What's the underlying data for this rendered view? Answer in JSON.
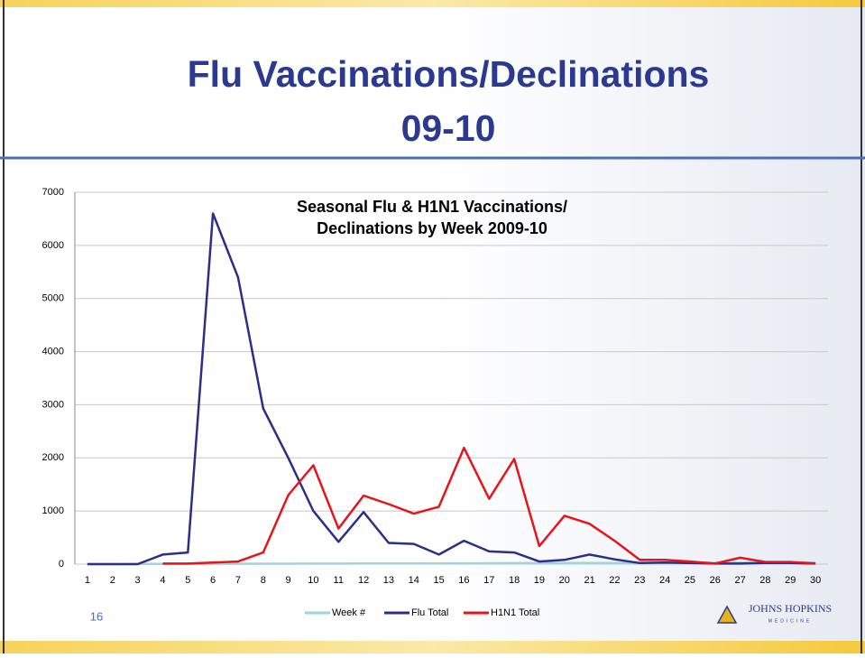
{
  "slide": {
    "title_lines": [
      "Flu Vaccinations/Declinations",
      "09-10"
    ],
    "page_number": "16",
    "logo": "JOHNS HOPKINS",
    "logo_sub": "MEDICINE"
  },
  "chart_data": {
    "type": "line",
    "title": [
      "Seasonal Flu & H1N1 Vaccinations/",
      "Declinations by Week  2009-10"
    ],
    "categories": [
      "1",
      "2",
      "3",
      "4",
      "5",
      "6",
      "7",
      "8",
      "9",
      "10",
      "11",
      "12",
      "13",
      "14",
      "15",
      "16",
      "17",
      "18",
      "19",
      "20",
      "21",
      "22",
      "23",
      "24",
      "25",
      "26",
      "27",
      "28",
      "29",
      "30"
    ],
    "series": [
      {
        "name": "Week #",
        "color": "#9fd4dc",
        "values": [
          1,
          2,
          3,
          4,
          5,
          6,
          7,
          8,
          9,
          10,
          11,
          12,
          13,
          14,
          15,
          16,
          17,
          18,
          19,
          20,
          21,
          22,
          23,
          24,
          25,
          26,
          27,
          28,
          29,
          30
        ]
      },
      {
        "name": "Flu Total",
        "color": "#2b2f86",
        "values": [
          0,
          0,
          0,
          180,
          220,
          6600,
          5400,
          2930,
          2000,
          1000,
          420,
          980,
          400,
          380,
          180,
          440,
          240,
          220,
          50,
          80,
          180,
          90,
          20,
          30,
          20,
          10,
          10,
          20,
          20,
          10
        ]
      },
      {
        "name": "H1N1 Total",
        "color": "#e8141b",
        "values": [
          null,
          null,
          null,
          10,
          10,
          30,
          50,
          220,
          1300,
          1860,
          670,
          1290,
          1130,
          950,
          1080,
          2190,
          1230,
          1980,
          340,
          910,
          760,
          440,
          80,
          80,
          50,
          10,
          120,
          40,
          40,
          10
        ]
      }
    ],
    "ylim": [
      0,
      7000
    ],
    "yticks": [
      0,
      1000,
      2000,
      3000,
      4000,
      5000,
      6000,
      7000
    ],
    "grid": true,
    "legend": "bottom"
  }
}
